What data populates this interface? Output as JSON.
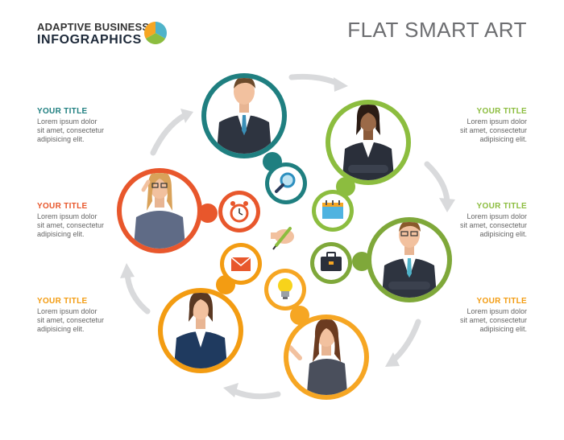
{
  "brand": {
    "line1": "ADAPTIVE BUSINESS",
    "line2": "INFOGRAPHICS",
    "logo_colors": [
      "#4fb3c9",
      "#f6a623",
      "#8cbd3f"
    ]
  },
  "title": "FLAT SMART ART",
  "colors": {
    "teal": "#1f7f80",
    "green": "#8cbd3f",
    "olive": "#7fa83a",
    "orange": "#f39c12",
    "red": "#e8572c",
    "amber": "#f6a623",
    "arrow": "#d9dadc",
    "title_teal": "#1f7f80",
    "title_green": "#8cbd3f",
    "title_red": "#e8572c",
    "title_orange": "#f39c12"
  },
  "blocks": [
    {
      "side": "left",
      "title": "YOUR TITLE",
      "color": "title_teal",
      "text": [
        "Lorem ipsum dolor",
        "sit amet, consectetur",
        "adipisicing elit."
      ]
    },
    {
      "side": "left",
      "title": "YOUR TITLE",
      "color": "title_red",
      "text": [
        "Lorem ipsum dolor",
        "sit amet, consectetur",
        "adipisicing elit."
      ]
    },
    {
      "side": "left",
      "title": "YOUR TITLE",
      "color": "title_orange",
      "text": [
        "Lorem ipsum dolor",
        "sit amet, consectetur",
        "adipisicing elit."
      ]
    },
    {
      "side": "right",
      "title": "YOUR TITLE",
      "color": "title_green",
      "text": [
        "Lorem ipsum dolor",
        "sit amet, consectetur",
        "adipisicing elit."
      ]
    },
    {
      "side": "right",
      "title": "YOUR TITLE",
      "color": "title_green",
      "text": [
        "Lorem ipsum dolor",
        "sit amet, consectetur",
        "adipisicing elit."
      ]
    },
    {
      "side": "right",
      "title": "YOUR TITLE",
      "color": "title_orange",
      "text": [
        "Lorem ipsum dolor",
        "sit amet, consectetur",
        "adipisicing elit."
      ]
    }
  ],
  "people": [
    {
      "name": "businessman-portrait",
      "icon": "magnifier-icon",
      "ring": "teal"
    },
    {
      "name": "businesswoman-portrait",
      "icon": "calendar-icon",
      "ring": "green"
    },
    {
      "name": "businessman-glasses-portrait",
      "icon": "briefcase-icon",
      "ring": "olive"
    },
    {
      "name": "businesswoman-pointing-portrait",
      "icon": "lightbulb-icon",
      "ring": "amber"
    },
    {
      "name": "businesswoman-suit-portrait",
      "icon": "envelope-icon",
      "ring": "orange"
    },
    {
      "name": "businesswoman-glasses-portrait",
      "icon": "alarm-clock-icon",
      "ring": "red"
    }
  ],
  "center_icon": "hand-writing-icon"
}
